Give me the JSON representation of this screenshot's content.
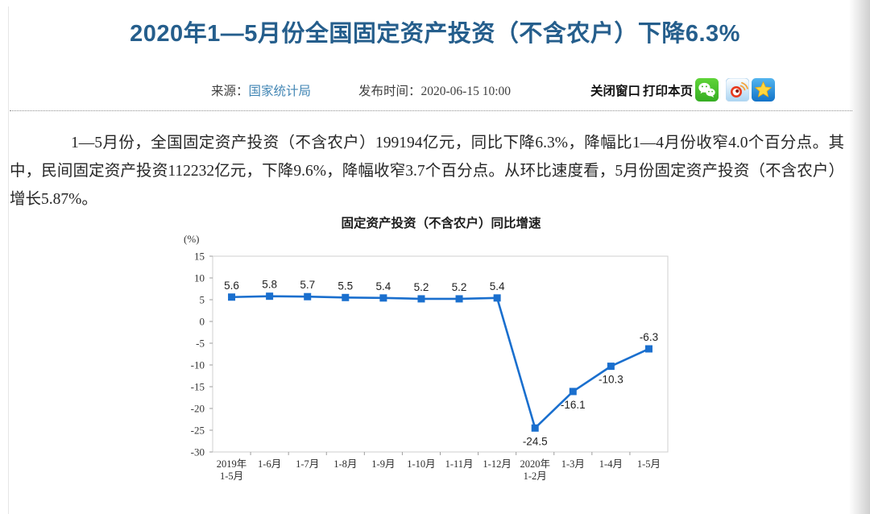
{
  "header": {
    "title": "2020年1—5月份全国固定资产投资（不含农户）下降6.3%",
    "meta": {
      "source_label": "来源：",
      "source_link": "国家统计局",
      "publish_label": "发布时间：",
      "publish_time": "2020-06-15 10:00",
      "close_window": "关闭窗口",
      "print_page": "打印本页",
      "share_icons": [
        "wechat",
        "weibo",
        "qzone"
      ]
    }
  },
  "article": {
    "paragraph": "1—5月份，全国固定资产投资（不含农户）199194亿元，同比下降6.3%，降幅比1—4月份收窄4.0个百分点。其中，民间固定资产投资112232亿元，下降9.6%，降幅收窄3.7个百分点。从环比速度看，5月份固定资产投资（不含农户）增长5.87%。"
  },
  "chart_data": {
    "type": "line",
    "title": "固定资产投资（不含农户）同比增速",
    "ylabel": "(%)",
    "categories": [
      "2019年\n1-5月",
      "1-6月",
      "1-7月",
      "1-8月",
      "1-9月",
      "1-10月",
      "1-11月",
      "1-12月",
      "2020年\n1-2月",
      "1-3月",
      "1-4月",
      "1-5月"
    ],
    "values": [
      5.6,
      5.8,
      5.7,
      5.5,
      5.4,
      5.2,
      5.2,
      5.4,
      -24.5,
      -16.1,
      -10.3,
      -6.3
    ],
    "ylim": [
      -30,
      15
    ],
    "ytick_step": 5,
    "label_positions": [
      "above",
      "above",
      "above",
      "above",
      "above",
      "above",
      "above",
      "above",
      "below",
      "below",
      "below",
      "above"
    ],
    "marker": "square",
    "grid": false,
    "legend": false,
    "line_color": "#1a6fce"
  },
  "theme": {
    "title_color": "#255e8c",
    "link_color": "#4286b4",
    "line_color": "#1a6fce",
    "axis_color": "#9e9e9e",
    "box_color": "#cfcfcf"
  }
}
